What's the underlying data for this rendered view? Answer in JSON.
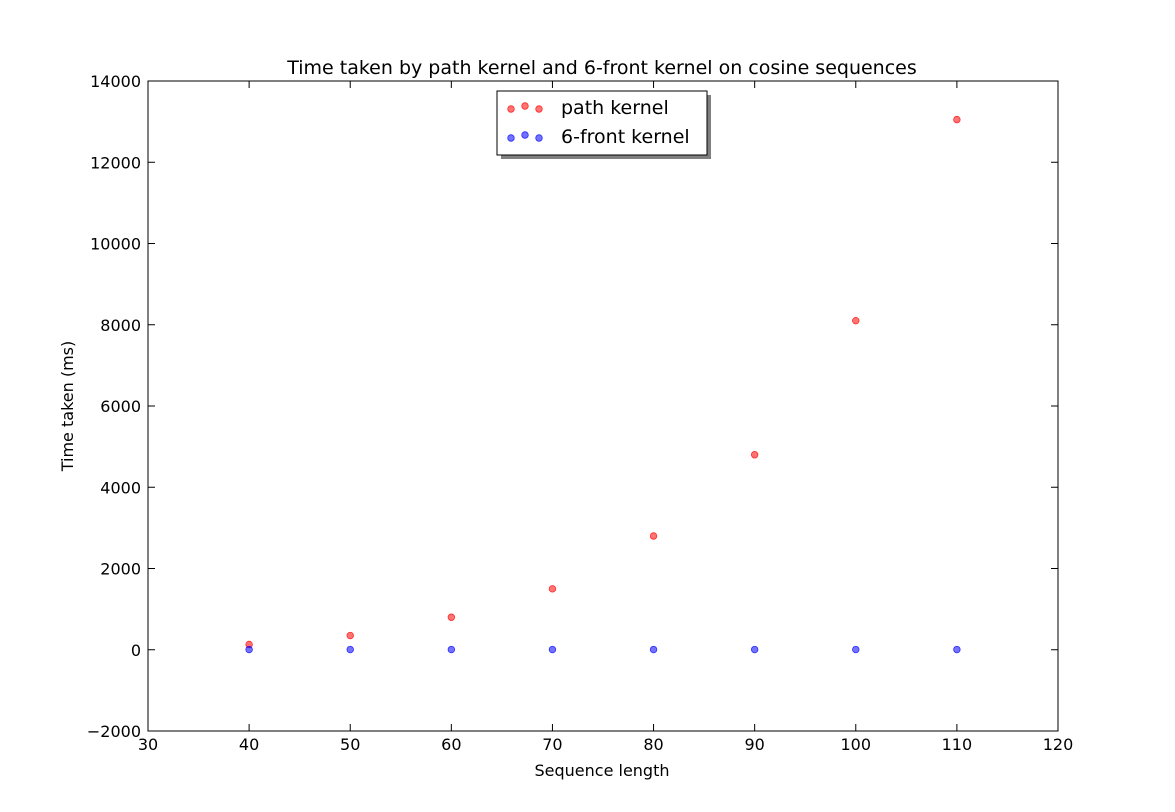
{
  "chart_data": {
    "type": "scatter",
    "title": "Time taken by path kernel and 6-front kernel on cosine sequences",
    "xlabel": "Sequence length",
    "ylabel": "Time taken (ms)",
    "xlim": [
      30,
      120
    ],
    "ylim": [
      -2000,
      14000
    ],
    "xticks": [
      30,
      40,
      50,
      60,
      70,
      80,
      90,
      100,
      110,
      120
    ],
    "yticks": [
      -2000,
      0,
      2000,
      4000,
      6000,
      8000,
      10000,
      12000,
      14000
    ],
    "xtick_labels": [
      "30",
      "40",
      "50",
      "60",
      "70",
      "80",
      "90",
      "100",
      "110",
      "120"
    ],
    "ytick_labels": [
      "−2000",
      "0",
      "2000",
      "4000",
      "6000",
      "8000",
      "10000",
      "12000",
      "14000"
    ],
    "grid": false,
    "legend_position": "top-center",
    "series": [
      {
        "name": "path kernel",
        "color": "#ff0000",
        "x": [
          40,
          50,
          60,
          70,
          80,
          90,
          100,
          110
        ],
        "y": [
          130,
          350,
          800,
          1500,
          2800,
          4800,
          8100,
          13050
        ]
      },
      {
        "name": "6-front kernel",
        "color": "#0000ff",
        "x": [
          40,
          50,
          60,
          70,
          80,
          90,
          100,
          110
        ],
        "y": [
          5,
          5,
          5,
          5,
          5,
          5,
          5,
          5
        ]
      }
    ]
  }
}
